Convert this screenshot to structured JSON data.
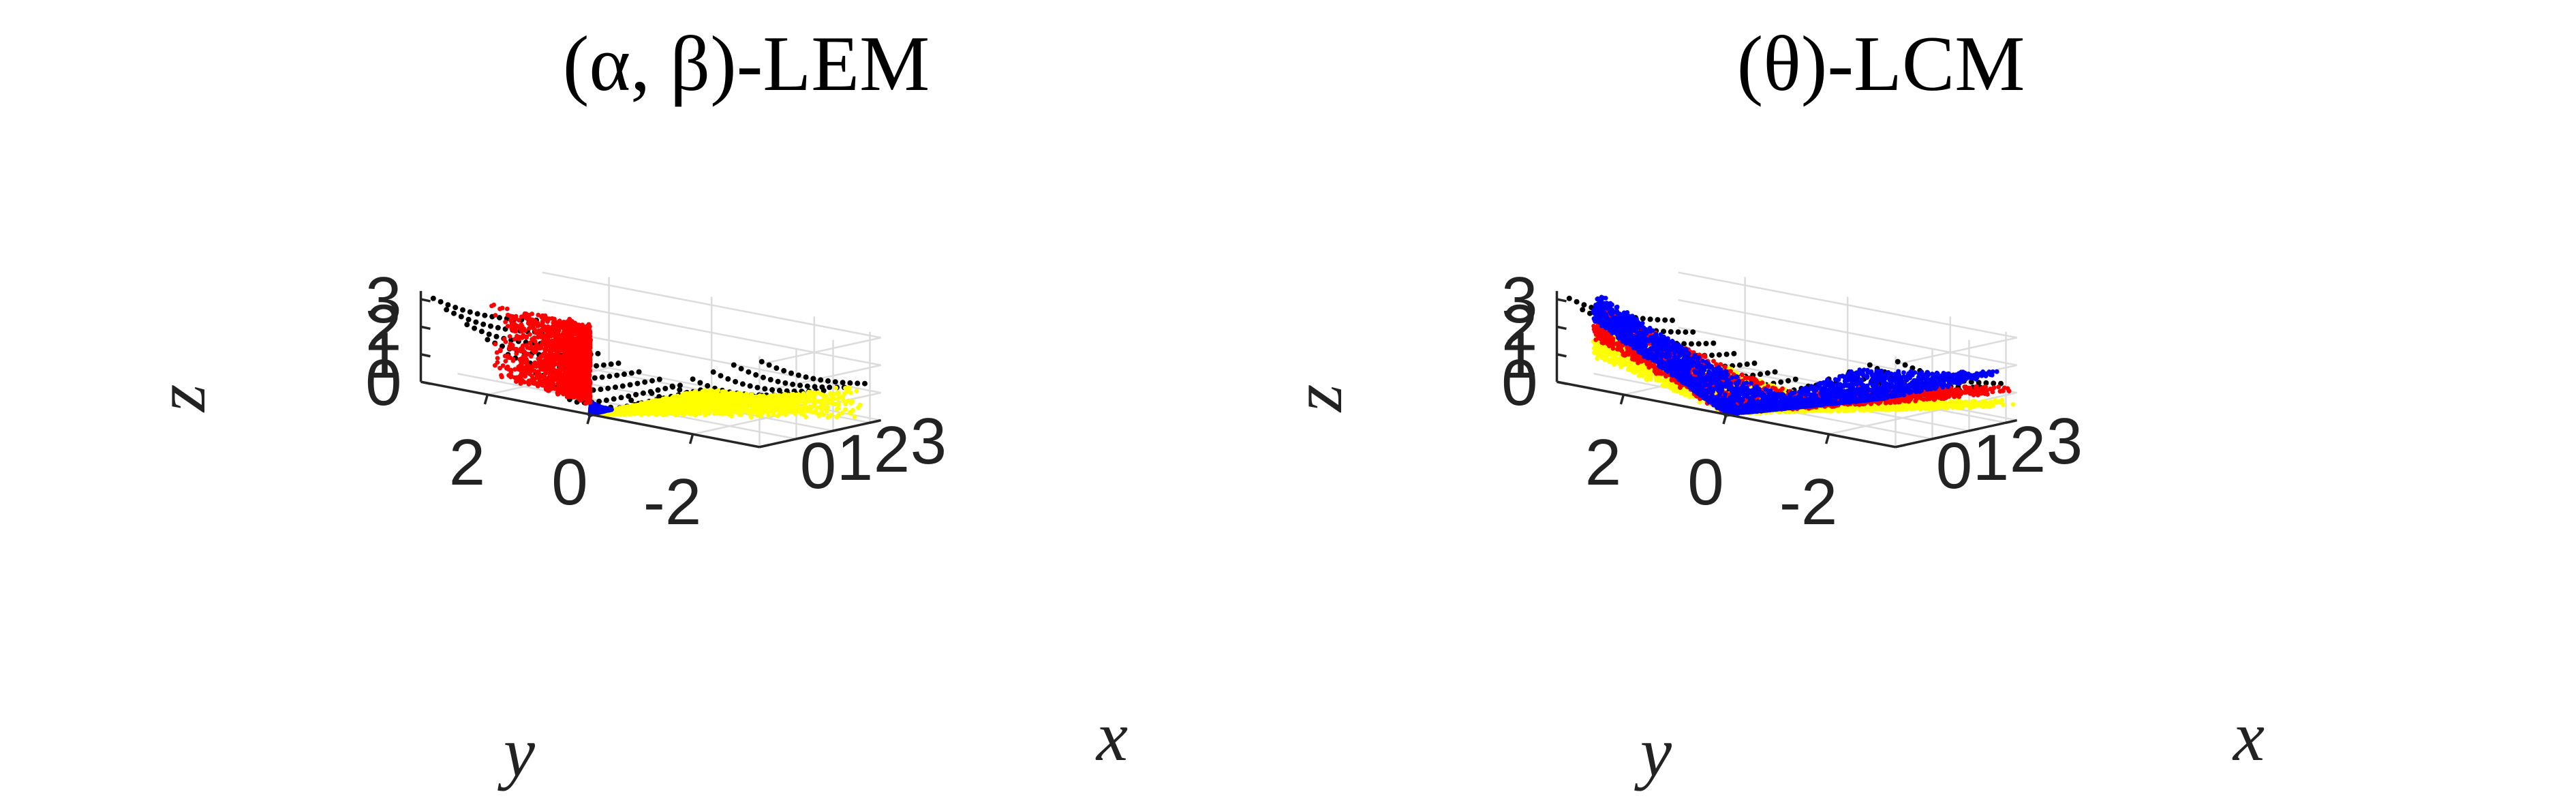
{
  "chart_data": [
    {
      "type": "scatter",
      "title": "(α, β)-LEM",
      "xlabel": "x",
      "ylabel": "y",
      "zlabel": "z",
      "xticks": [
        "0",
        "1",
        "2",
        "3"
      ],
      "yticks": [
        "2",
        "0",
        "-2"
      ],
      "zticks": [
        "0",
        "1",
        "2",
        "3"
      ],
      "xlim": [
        0,
        3.3
      ],
      "ylim": [
        -3.3,
        3.3
      ],
      "zlim": [
        0,
        3.3
      ],
      "grid": true,
      "series": [
        {
          "marker": "dot",
          "color": "#000000",
          "surface": "boundary-cone"
        },
        {
          "marker": "dot",
          "color": "#ffff00",
          "region": {
            "x": [
              0.0,
              3.2
            ],
            "y_over_x": [
              -1.0,
              0.0
            ],
            "z": "below-cone"
          }
        },
        {
          "marker": "dot",
          "color": "#0000ff",
          "region": {
            "x": [
              0.0,
              0.6
            ],
            "y_over_x": [
              0.0,
              0.7
            ],
            "z": "to-cone"
          }
        },
        {
          "marker": "dot",
          "color": "#ff0000",
          "region": {
            "x": [
              0.0,
              0.6
            ],
            "y_over_x": [
              0.7,
              4.0
            ],
            "z": [
              0.35,
              3.0
            ]
          }
        }
      ]
    },
    {
      "type": "scatter",
      "title": "(θ)-LCM",
      "xlabel": "x",
      "ylabel": "y",
      "zlabel": "z",
      "xticks": [
        "0",
        "1",
        "2",
        "3"
      ],
      "yticks": [
        "2",
        "0",
        "-2"
      ],
      "zticks": [
        "0",
        "1",
        "2",
        "3"
      ],
      "xlim": [
        0,
        3.3
      ],
      "ylim": [
        -3.3,
        3.3
      ],
      "zlim": [
        0,
        3.3
      ],
      "grid": true,
      "series": [
        {
          "marker": "dot",
          "color": "#000000",
          "surface": "boundary-cone"
        },
        {
          "marker": "dot",
          "color": "#ffff00",
          "surface": "lower-shell",
          "x": [
            0.0,
            2.3
          ]
        },
        {
          "marker": "dot",
          "color": "#ff0000",
          "surface": "middle-shell",
          "x": [
            0.0,
            2.3
          ]
        },
        {
          "marker": "dot",
          "color": "#0000ff",
          "surface": "upper-shell",
          "x": [
            0.0,
            2.0
          ]
        }
      ]
    }
  ]
}
